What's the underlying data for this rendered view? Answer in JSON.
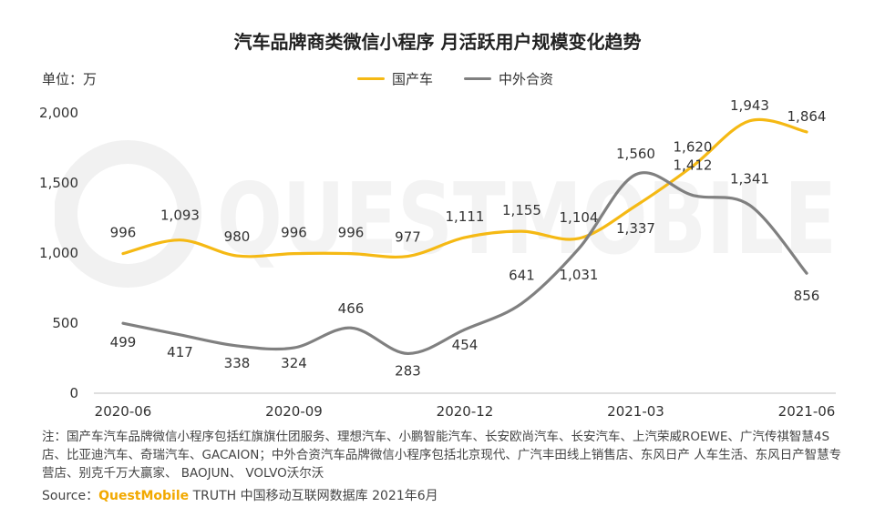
{
  "chart_data": {
    "type": "line",
    "title": "汽车品牌商类微信小程序 月活跃用户规模变化趋势",
    "ylabel": "单位：万",
    "ylim": [
      0,
      2000
    ],
    "yticks": [
      "0",
      "500",
      "1,000",
      "1,500",
      "2,000"
    ],
    "x": [
      "2020-06",
      "2020-07",
      "2020-08",
      "2020-09",
      "2020-10",
      "2020-11",
      "2020-12",
      "2021-01",
      "2021-02",
      "2021-03",
      "2021-04",
      "2021-05",
      "2021-06"
    ],
    "xtick_labels": [
      "2020-06",
      "2020-09",
      "2020-12",
      "2021-03",
      "2021-06"
    ],
    "legend_position": "top-center",
    "series": [
      {
        "name": "国产车",
        "color": "#F5B914",
        "values": [
          996,
          1093,
          980,
          996,
          996,
          977,
          1111,
          1155,
          1104,
          1337,
          1620,
          1943,
          1864
        ],
        "labels": [
          "996",
          "1,093",
          "980",
          "996",
          "996",
          "977",
          "1,111",
          "1,155",
          "1,104",
          "1,337",
          "1,620",
          "1,943",
          "1,864"
        ]
      },
      {
        "name": "中外合资",
        "color": "#808080",
        "values": [
          499,
          417,
          338,
          324,
          466,
          283,
          454,
          641,
          1031,
          1560,
          1412,
          1341,
          856
        ],
        "labels": [
          "499",
          "417",
          "338",
          "324",
          "466",
          "283",
          "454",
          "641",
          "1,031",
          "1,560",
          "1,412",
          "1,341",
          "856"
        ]
      }
    ]
  },
  "watermark_text": "QUESTMOBILE",
  "note": "注：国产车汽车品牌微信小程序包括红旗旗仕团服务、理想汽车、小鹏智能汽车、长安欧尚汽车、长安汽车、上汽荣威ROEWE、广汽传祺智慧4S店、比亚迪汽车、奇瑞汽车、GACAION；中外合资汽车品牌微信小程序包括北京现代、广汽丰田线上销售店、东风日产 人车生活、东风日产智慧专营店、别克千万大赢家、 BAOJUN、 VOLVO沃尔沃",
  "source": {
    "prefix": "Source：",
    "brand": "QuestMobile",
    "suffix": " TRUTH 中国移动互联网数据库 2021年6月"
  }
}
